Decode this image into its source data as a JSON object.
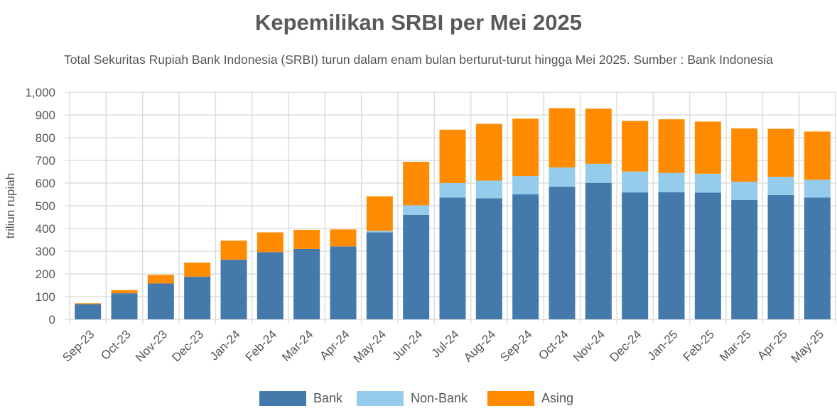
{
  "chart_data": {
    "type": "bar",
    "stacked": true,
    "title": "Kepemilikan SRBI per Mei 2025",
    "subtitle": "Total Sekuritas Rupiah Bank Indonesia (SRBI) turun dalam enam bulan berturut-turut hingga Mei 2025. Sumber : Bank Indonesia",
    "xlabel": "",
    "ylabel": "triliun rupiah",
    "ylim": [
      0,
      1000
    ],
    "yticks": [
      "0",
      "100",
      "200",
      "300",
      "400",
      "500",
      "600",
      "700",
      "800",
      "900",
      "1,000"
    ],
    "grid": true,
    "legend_position": "bottom",
    "categories": [
      "Sep-23",
      "Oct-23",
      "Nov-23",
      "Dec-23",
      "Jan-24",
      "Feb-24",
      "Mar-24",
      "Apr-24",
      "May-24",
      "Jun-24",
      "Jul-24",
      "Aug-24",
      "Sep-24",
      "Oct-24",
      "Nov-24",
      "Dec-24",
      "Jan-25",
      "Feb-25",
      "Mar-25",
      "Apr-25",
      "May-25"
    ],
    "series": [
      {
        "name": "Bank",
        "color": "#4479AB",
        "values": [
          67,
          115,
          158,
          188,
          263,
          296,
          310,
          321,
          383,
          460,
          536,
          533,
          551,
          584,
          601,
          559,
          560,
          558,
          525,
          547,
          536
        ]
      },
      {
        "name": "Non-Bank",
        "color": "#95CBEB",
        "values": [
          0,
          0,
          0,
          0,
          0,
          0,
          0,
          0,
          7,
          42,
          64,
          78,
          80,
          85,
          84,
          92,
          85,
          83,
          81,
          81,
          79
        ]
      },
      {
        "name": "Asing",
        "color": "#FF8C00",
        "values": [
          4,
          14,
          38,
          62,
          84,
          87,
          84,
          75,
          152,
          192,
          235,
          250,
          253,
          261,
          243,
          223,
          236,
          230,
          235,
          211,
          212
        ]
      }
    ]
  }
}
